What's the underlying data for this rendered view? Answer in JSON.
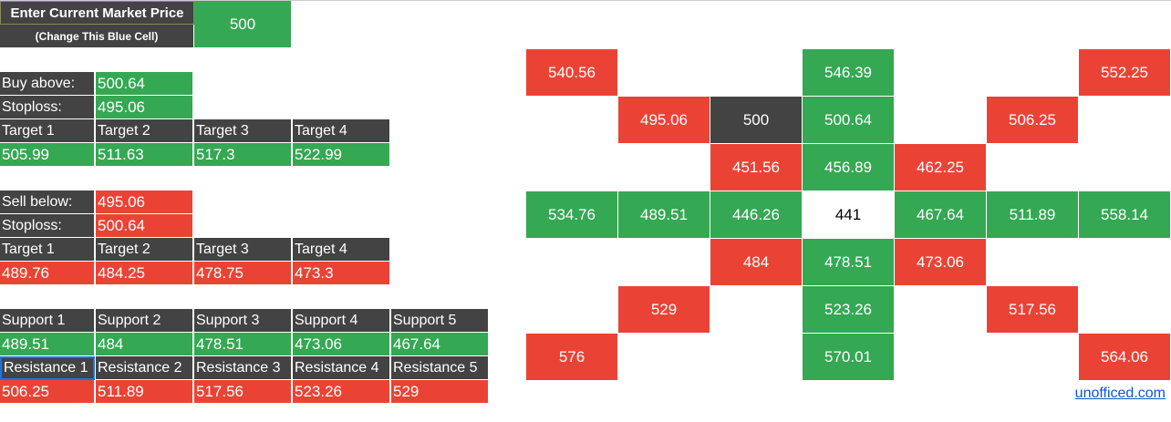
{
  "header": {
    "title": "Enter Current Market Price",
    "subtitle": "(Change This Blue Cell)",
    "price": "500"
  },
  "buy": {
    "entry_label": "Buy above:",
    "entry": "500.64",
    "stop_label": "Stoploss:",
    "stop": "495.06",
    "targets": [
      {
        "label": "Target 1",
        "value": "505.99"
      },
      {
        "label": "Target 2",
        "value": "511.63"
      },
      {
        "label": "Target 3",
        "value": "517.3"
      },
      {
        "label": "Target 4",
        "value": "522.99"
      }
    ]
  },
  "sell": {
    "entry_label": "Sell below:",
    "entry": "495.06",
    "stop_label": "Stoploss:",
    "stop": "500.64",
    "targets": [
      {
        "label": "Target 1",
        "value": "489.76"
      },
      {
        "label": "Target 2",
        "value": "484.25"
      },
      {
        "label": "Target 3",
        "value": "478.75"
      },
      {
        "label": "Target 4",
        "value": "473.3"
      }
    ]
  },
  "support": [
    {
      "label": "Support 1",
      "value": "489.51"
    },
    {
      "label": "Support 2",
      "value": "484"
    },
    {
      "label": "Support 3",
      "value": "478.51"
    },
    {
      "label": "Support 4",
      "value": "473.06"
    },
    {
      "label": "Support 5",
      "value": "467.64"
    }
  ],
  "resistance": [
    {
      "label": "Resistance 1",
      "value": "506.25"
    },
    {
      "label": "Resistance 2",
      "value": "511.89"
    },
    {
      "label": "Resistance 3",
      "value": "517.56"
    },
    {
      "label": "Resistance 4",
      "value": "523.26"
    },
    {
      "label": "Resistance 5",
      "value": "529"
    }
  ],
  "grid": {
    "rows": [
      [
        {
          "text": "540.56",
          "color": "#ea4335"
        },
        null,
        null,
        {
          "text": "546.39",
          "color": "#34a853"
        },
        null,
        null,
        {
          "text": "552.25",
          "color": "#ea4335"
        }
      ],
      [
        null,
        {
          "text": "495.06",
          "color": "#ea4335"
        },
        {
          "text": "500",
          "color": "#434343"
        },
        {
          "text": "500.64",
          "color": "#34a853"
        },
        null,
        {
          "text": "506.25",
          "color": "#ea4335"
        },
        null
      ],
      [
        null,
        null,
        {
          "text": "451.56",
          "color": "#ea4335"
        },
        {
          "text": "456.89",
          "color": "#34a853"
        },
        {
          "text": "462.25",
          "color": "#ea4335"
        },
        null,
        null
      ],
      [
        {
          "text": "534.76",
          "color": "#34a853"
        },
        {
          "text": "489.51",
          "color": "#34a853"
        },
        {
          "text": "446.26",
          "color": "#34a853"
        },
        {
          "text": "441",
          "color": "#ffffff"
        },
        {
          "text": "467.64",
          "color": "#34a853"
        },
        {
          "text": "511.89",
          "color": "#34a853"
        },
        {
          "text": "558.14",
          "color": "#34a853"
        }
      ],
      [
        null,
        null,
        {
          "text": "484",
          "color": "#ea4335"
        },
        {
          "text": "478.51",
          "color": "#34a853"
        },
        {
          "text": "473.06",
          "color": "#ea4335"
        },
        null,
        null
      ],
      [
        null,
        {
          "text": "529",
          "color": "#ea4335"
        },
        null,
        {
          "text": "523.26",
          "color": "#34a853"
        },
        null,
        {
          "text": "517.56",
          "color": "#ea4335"
        },
        null
      ],
      [
        {
          "text": "576",
          "color": "#ea4335"
        },
        null,
        null,
        {
          "text": "570.01",
          "color": "#34a853"
        },
        null,
        null,
        {
          "text": "564.06",
          "color": "#ea4335"
        }
      ]
    ]
  },
  "footer": {
    "link": "unofficed.com"
  }
}
